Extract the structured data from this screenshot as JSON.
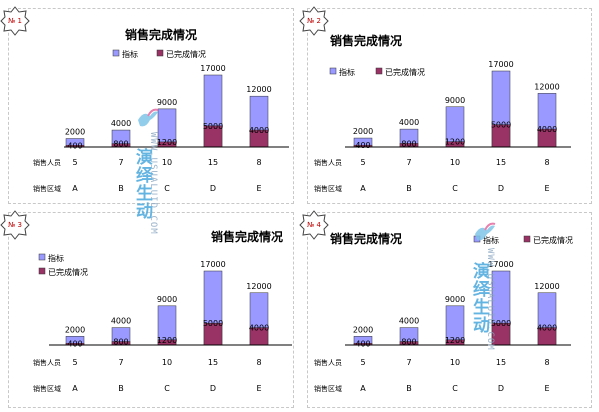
{
  "chart_data": [
    {
      "type": "bar",
      "badge": "№ 1",
      "title": "销售完成情况",
      "legend": [
        "指标",
        "已完成情况"
      ],
      "series": [
        {
          "name": "指标",
          "values": [
            2000,
            4000,
            9000,
            17000,
            12000
          ],
          "color": "#9999ff"
        },
        {
          "name": "已完成情况",
          "values": [
            400,
            800,
            1200,
            5000,
            4000
          ],
          "color": "#993366"
        }
      ],
      "categories": [
        "A",
        "B",
        "C",
        "D",
        "E"
      ],
      "row_labels": [
        {
          "label": "销售人员",
          "values": [
            "5",
            "7",
            "10",
            "15",
            "8"
          ]
        },
        {
          "label": "销售区域",
          "values": [
            "A",
            "B",
            "C",
            "D",
            "E"
          ]
        }
      ]
    },
    {
      "type": "bar",
      "badge": "№ 2",
      "title": "销售完成情况",
      "legend": [
        "指标",
        "已完成情况"
      ],
      "series": [
        {
          "name": "指标",
          "values": [
            2000,
            4000,
            9000,
            17000,
            12000
          ],
          "color": "#9999ff"
        },
        {
          "name": "已完成情况",
          "values": [
            400,
            800,
            1200,
            5000,
            4000
          ],
          "color": "#993366"
        }
      ],
      "categories": [
        "A",
        "B",
        "C",
        "D",
        "E"
      ],
      "row_labels": [
        {
          "label": "销售人员",
          "values": [
            "5",
            "7",
            "10",
            "15",
            "8"
          ]
        },
        {
          "label": "销售区域",
          "values": [
            "A",
            "B",
            "C",
            "D",
            "E"
          ]
        }
      ]
    },
    {
      "type": "bar",
      "badge": "№ 3",
      "title": "销售完成情况",
      "legend": [
        "指标",
        "已完成情况"
      ],
      "series": [
        {
          "name": "指标",
          "values": [
            2000,
            4000,
            9000,
            17000,
            12000
          ],
          "color": "#9999ff"
        },
        {
          "name": "已完成情况",
          "values": [
            400,
            800,
            1200,
            5000,
            4000
          ],
          "color": "#993366"
        }
      ],
      "categories": [
        "A",
        "B",
        "C",
        "D",
        "E"
      ],
      "row_labels": [
        {
          "label": "销售人员",
          "values": [
            "5",
            "7",
            "10",
            "15",
            "8"
          ]
        },
        {
          "label": "销售区域",
          "values": [
            "A",
            "B",
            "C",
            "D",
            "E"
          ]
        }
      ]
    },
    {
      "type": "bar",
      "badge": "№ 4",
      "title": "销售完成情况",
      "legend": [
        "指标",
        "已完成情况"
      ],
      "series": [
        {
          "name": "指标",
          "values": [
            2000,
            4000,
            9000,
            17000,
            12000
          ],
          "color": "#9999ff"
        },
        {
          "name": "已完成情况",
          "values": [
            400,
            800,
            1200,
            5000,
            4000
          ],
          "color": "#993366"
        }
      ],
      "categories": [
        "A",
        "B",
        "C",
        "D",
        "E"
      ],
      "row_labels": [
        {
          "label": "销售人员",
          "values": [
            "5",
            "7",
            "10",
            "15",
            "8"
          ]
        },
        {
          "label": "销售区域",
          "values": [
            "A",
            "B",
            "C",
            "D",
            "E"
          ]
        }
      ]
    }
  ],
  "watermark": {
    "text": "演绎生动",
    "site": "WWW.USUALUID.COM"
  }
}
